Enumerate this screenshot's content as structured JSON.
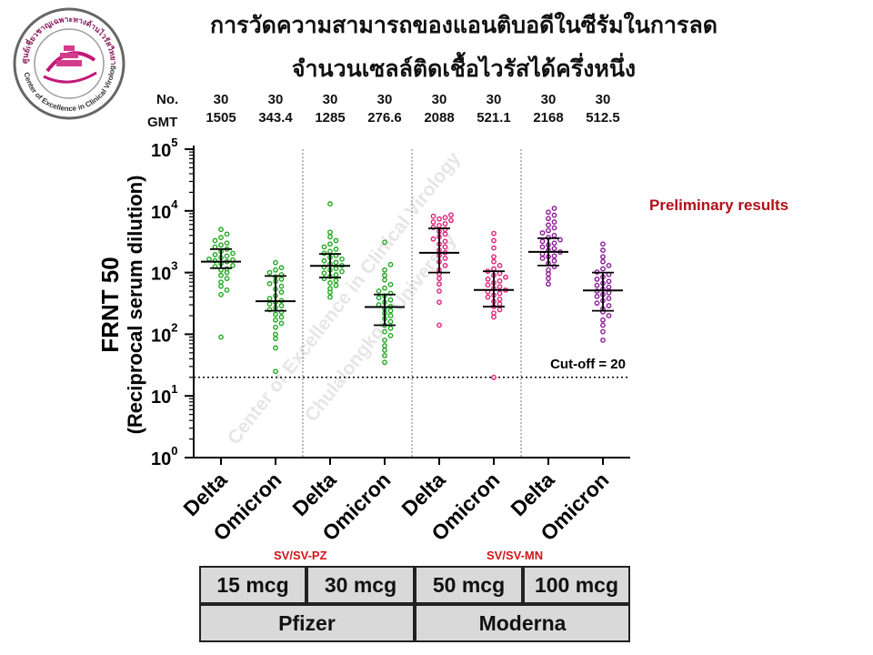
{
  "title": {
    "line1": "การวัดความสามารถของแอนติบอดีในซีรัมในการลด",
    "line2": "จำนวนเซลล์ติดเชื้อไวรัสได้ครึ่งหนึ่ง"
  },
  "header_labels": {
    "no": "No.",
    "gmt": "GMT"
  },
  "columns": [
    {
      "no": "30",
      "gmt": "1505"
    },
    {
      "no": "30",
      "gmt": "343.4"
    },
    {
      "no": "30",
      "gmt": "1285"
    },
    {
      "no": "30",
      "gmt": "276.6"
    },
    {
      "no": "30",
      "gmt": "2088"
    },
    {
      "no": "30",
      "gmt": "521.1"
    },
    {
      "no": "30",
      "gmt": "2168"
    },
    {
      "no": "30",
      "gmt": "512.5"
    }
  ],
  "preliminary": "Preliminary results",
  "group_labels": {
    "pz": "SV/SV-PZ",
    "mn": "SV/SV-MN"
  },
  "dose_boxes": [
    "15 mcg",
    "30 mcg",
    "50 mcg",
    "100 mcg"
  ],
  "vaccine_boxes": [
    "Pfizer",
    "Moderna"
  ],
  "logo": {
    "text": "ศูนย์เชี่ยวชาญเฉพาะทางด้านไวรัสวิทยาคลินิก",
    "text2": "Center of Excellence in Clinical Virology"
  },
  "watermark": [
    "Center of Excellence in Clinical Virology",
    "Chulalongkorn University"
  ],
  "chart_data": {
    "type": "scatter",
    "ylabel_line1": "FRNT 50",
    "ylabel_line2": "(Reciprocal serum dilution)",
    "yscale": "log",
    "ylim": [
      1,
      100000
    ],
    "yticks": [
      {
        "value": 1,
        "label": "10",
        "exp": "0"
      },
      {
        "value": 10,
        "label": "10",
        "exp": "1"
      },
      {
        "value": 100,
        "label": "10",
        "exp": "2"
      },
      {
        "value": 1000,
        "label": "10",
        "exp": "3"
      },
      {
        "value": 10000,
        "label": "10",
        "exp": "4"
      },
      {
        "value": 100000,
        "label": "10",
        "exp": "5"
      }
    ],
    "categories": [
      "Delta",
      "Omicron",
      "Delta",
      "Omicron",
      "Delta",
      "Omicron",
      "Delta",
      "Omicron"
    ],
    "cutoff": {
      "value": 20,
      "label": "Cut-off = 20"
    },
    "series_colors": [
      "#22aa22",
      "#22aa22",
      "#22aa22",
      "#22aa22",
      "#e0207a",
      "#e0207a",
      "#8c1a99",
      "#8c1a99"
    ],
    "series": [
      {
        "gmt": 1505,
        "ci": [
          1180,
          2400
        ],
        "values": [
          90,
          440,
          520,
          600,
          700,
          800,
          900,
          1000,
          1100,
          1150,
          1250,
          1300,
          1400,
          1500,
          1550,
          1650,
          1750,
          1850,
          1950,
          2050,
          2200,
          2400,
          2600,
          2800,
          3000,
          3300,
          3700,
          4200,
          5000,
          1600
        ]
      },
      {
        "gmt": 343.4,
        "ci": [
          240,
          880
        ],
        "values": [
          25,
          60,
          85,
          100,
          130,
          150,
          170,
          190,
          210,
          230,
          250,
          270,
          290,
          310,
          330,
          350,
          380,
          420,
          480,
          540,
          600,
          660,
          720,
          780,
          850,
          920,
          1000,
          1100,
          1200,
          1450
        ]
      },
      {
        "gmt": 1285,
        "ci": [
          830,
          2000
        ],
        "values": [
          400,
          480,
          550,
          620,
          680,
          740,
          800,
          860,
          920,
          980,
          1040,
          1100,
          1160,
          1230,
          1300,
          1380,
          1460,
          1550,
          1650,
          1760,
          1900,
          2050,
          2200,
          2400,
          2600,
          2900,
          3300,
          3800,
          4500,
          13000
        ]
      },
      {
        "gmt": 276.6,
        "ci": [
          140,
          440
        ],
        "values": [
          35,
          45,
          55,
          65,
          80,
          95,
          110,
          125,
          140,
          160,
          180,
          200,
          220,
          240,
          260,
          280,
          300,
          330,
          360,
          390,
          420,
          460,
          500,
          560,
          640,
          760,
          900,
          1100,
          1350,
          3100
        ]
      },
      {
        "gmt": 2088,
        "ci": [
          1000,
          5200
        ],
        "values": [
          140,
          330,
          500,
          650,
          800,
          950,
          1100,
          1300,
          1500,
          1700,
          1900,
          2100,
          2300,
          2600,
          2900,
          3200,
          3500,
          3800,
          4200,
          4600,
          5000,
          5400,
          5800,
          6200,
          6600,
          7000,
          7400,
          7800,
          8200,
          8600
        ]
      },
      {
        "gmt": 521.1,
        "ci": [
          280,
          1050
        ],
        "values": [
          20,
          190,
          220,
          250,
          280,
          310,
          340,
          370,
          400,
          430,
          460,
          490,
          520,
          550,
          590,
          630,
          680,
          730,
          780,
          840,
          900,
          970,
          1050,
          1150,
          1300,
          1500,
          1800,
          2500,
          3300,
          4300
        ]
      },
      {
        "gmt": 2168,
        "ci": [
          1300,
          3600
        ],
        "values": [
          650,
          800,
          950,
          1100,
          1250,
          1400,
          1550,
          1700,
          1850,
          2000,
          2150,
          2300,
          2450,
          2600,
          2800,
          3000,
          3200,
          3400,
          3700,
          4000,
          4400,
          4800,
          5300,
          5900,
          6600,
          7500,
          8500,
          9500,
          11000,
          1800
        ]
      },
      {
        "gmt": 512.5,
        "ci": [
          240,
          1000
        ],
        "values": [
          80,
          110,
          140,
          170,
          200,
          230,
          260,
          290,
          320,
          350,
          380,
          410,
          440,
          470,
          500,
          540,
          580,
          620,
          670,
          720,
          780,
          850,
          930,
          1020,
          1150,
          1300,
          1500,
          1800,
          2300,
          2900
        ]
      }
    ]
  }
}
